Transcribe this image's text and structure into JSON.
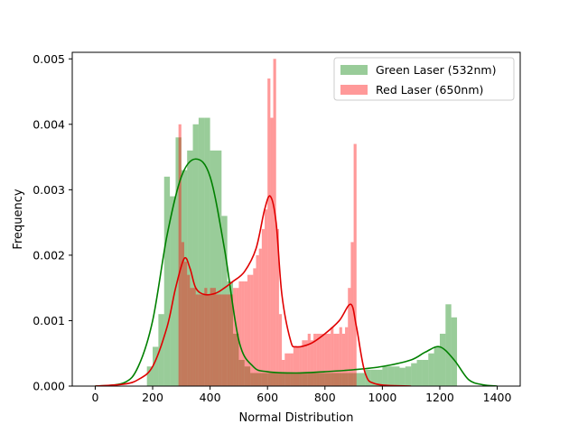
{
  "chart_data": {
    "type": "histogram",
    "xlabel": "Normal Distribution",
    "ylabel": "Frequency",
    "xlim": [
      -80,
      1480
    ],
    "ylim": [
      0,
      0.0051
    ],
    "x_ticks": [
      0,
      200,
      400,
      600,
      800,
      1000,
      1200,
      1400
    ],
    "y_ticks": [
      0.0,
      0.001,
      0.002,
      0.003,
      0.004,
      0.005
    ],
    "y_tick_labels": [
      "0.000",
      "0.001",
      "0.002",
      "0.003",
      "0.004",
      "0.005"
    ],
    "legend_position": "top-right",
    "series": [
      {
        "name": "Green Laser (532nm)",
        "color": "#008000",
        "bar_alpha": 0.4,
        "bin_width": 20,
        "bins": [
          [
            180,
            0.0003
          ],
          [
            200,
            0.0006
          ],
          [
            220,
            0.0011
          ],
          [
            240,
            0.0032
          ],
          [
            260,
            0.0029
          ],
          [
            280,
            0.0038
          ],
          [
            300,
            0.0033
          ],
          [
            320,
            0.0036
          ],
          [
            340,
            0.004
          ],
          [
            360,
            0.0041
          ],
          [
            380,
            0.0041
          ],
          [
            400,
            0.0036
          ],
          [
            420,
            0.0036
          ],
          [
            440,
            0.0026
          ],
          [
            460,
            0.0016
          ],
          [
            480,
            0.0008
          ],
          [
            500,
            0.0004
          ],
          [
            520,
            0.0003
          ],
          [
            540,
            0.0002
          ],
          [
            560,
            0.0002
          ],
          [
            580,
            0.0002
          ],
          [
            600,
            0.0002
          ],
          [
            620,
            0.0002
          ],
          [
            640,
            0.0002
          ],
          [
            660,
            0.0002
          ],
          [
            680,
            0.0002
          ],
          [
            700,
            0.0002
          ],
          [
            720,
            0.0002
          ],
          [
            740,
            0.0002
          ],
          [
            760,
            0.0002
          ],
          [
            780,
            0.0002
          ],
          [
            800,
            0.0002
          ],
          [
            820,
            0.0002
          ],
          [
            840,
            0.0002
          ],
          [
            860,
            0.0002
          ],
          [
            880,
            0.0002
          ],
          [
            900,
            0.0002
          ],
          [
            920,
            0.0002
          ],
          [
            940,
            0.00025
          ],
          [
            960,
            0.00025
          ],
          [
            980,
            0.00025
          ],
          [
            1000,
            0.0003
          ],
          [
            1020,
            0.0003
          ],
          [
            1040,
            0.0003
          ],
          [
            1060,
            0.00028
          ],
          [
            1080,
            0.0003
          ],
          [
            1100,
            0.00035
          ],
          [
            1120,
            0.0004
          ],
          [
            1140,
            0.0004
          ],
          [
            1160,
            0.0005
          ],
          [
            1180,
            0.0006
          ],
          [
            1200,
            0.0008
          ],
          [
            1220,
            0.00125
          ],
          [
            1240,
            0.00105
          ]
        ],
        "kde": [
          [
            0,
            0.0
          ],
          [
            100,
            5e-05
          ],
          [
            150,
            0.0003
          ],
          [
            200,
            0.001
          ],
          [
            250,
            0.0023
          ],
          [
            300,
            0.0032
          ],
          [
            350,
            0.00347
          ],
          [
            400,
            0.0032
          ],
          [
            450,
            0.0021
          ],
          [
            500,
            0.0007
          ],
          [
            550,
            0.0003
          ],
          [
            600,
            0.00022
          ],
          [
            700,
            0.0002
          ],
          [
            800,
            0.00022
          ],
          [
            900,
            0.00025
          ],
          [
            1000,
            0.0003
          ],
          [
            1100,
            0.0004
          ],
          [
            1150,
            0.00052
          ],
          [
            1200,
            0.0006
          ],
          [
            1250,
            0.0004
          ],
          [
            1300,
            0.0001
          ],
          [
            1350,
            2e-05
          ],
          [
            1400,
            0.0
          ]
        ]
      },
      {
        "name": "Red Laser (650nm)",
        "color": "#ff0000",
        "bar_alpha": 0.4,
        "bin_width": 10,
        "bins": [
          [
            290,
            0.004
          ],
          [
            300,
            0.0022
          ],
          [
            310,
            0.0019
          ],
          [
            320,
            0.0017
          ],
          [
            330,
            0.0015
          ],
          [
            340,
            0.0015
          ],
          [
            350,
            0.0014
          ],
          [
            360,
            0.0014
          ],
          [
            370,
            0.0014
          ],
          [
            380,
            0.0015
          ],
          [
            390,
            0.0014
          ],
          [
            400,
            0.0015
          ],
          [
            410,
            0.0015
          ],
          [
            420,
            0.0014
          ],
          [
            430,
            0.0014
          ],
          [
            440,
            0.0014
          ],
          [
            450,
            0.0014
          ],
          [
            460,
            0.0014
          ],
          [
            470,
            0.0014
          ],
          [
            480,
            0.0015
          ],
          [
            490,
            0.0015
          ],
          [
            500,
            0.0016
          ],
          [
            510,
            0.0016
          ],
          [
            520,
            0.0016
          ],
          [
            530,
            0.0017
          ],
          [
            540,
            0.0017
          ],
          [
            550,
            0.0018
          ],
          [
            560,
            0.002
          ],
          [
            570,
            0.0021
          ],
          [
            580,
            0.0024
          ],
          [
            590,
            0.0027
          ],
          [
            600,
            0.0047
          ],
          [
            610,
            0.0041
          ],
          [
            620,
            0.005
          ],
          [
            630,
            0.0024
          ],
          [
            640,
            0.0011
          ],
          [
            650,
            0.0004
          ],
          [
            660,
            0.0005
          ],
          [
            670,
            0.0005
          ],
          [
            680,
            0.0005
          ],
          [
            690,
            0.0006
          ],
          [
            700,
            0.0006
          ],
          [
            710,
            0.0006
          ],
          [
            720,
            0.0007
          ],
          [
            730,
            0.0007
          ],
          [
            740,
            0.0008
          ],
          [
            750,
            0.0007
          ],
          [
            760,
            0.0008
          ],
          [
            770,
            0.0008
          ],
          [
            780,
            0.0008
          ],
          [
            790,
            0.0008
          ],
          [
            800,
            0.0008
          ],
          [
            810,
            0.0008
          ],
          [
            820,
            0.0009
          ],
          [
            830,
            0.0008
          ],
          [
            840,
            0.0008
          ],
          [
            850,
            0.0009
          ],
          [
            860,
            0.0008
          ],
          [
            870,
            0.0009
          ],
          [
            880,
            0.0015
          ],
          [
            890,
            0.0022
          ],
          [
            900,
            0.0037
          ]
        ],
        "kde": [
          [
            0,
            0.0
          ],
          [
            100,
            3e-05
          ],
          [
            150,
            0.0001
          ],
          [
            200,
            0.0003
          ],
          [
            250,
            0.0009
          ],
          [
            280,
            0.0015
          ],
          [
            310,
            0.00195
          ],
          [
            330,
            0.0018
          ],
          [
            350,
            0.0015
          ],
          [
            380,
            0.0014
          ],
          [
            420,
            0.00142
          ],
          [
            450,
            0.0015
          ],
          [
            480,
            0.0016
          ],
          [
            520,
            0.00175
          ],
          [
            560,
            0.0021
          ],
          [
            590,
            0.0027
          ],
          [
            610,
            0.0029
          ],
          [
            630,
            0.0025
          ],
          [
            650,
            0.0014
          ],
          [
            680,
            0.0007
          ],
          [
            700,
            0.0006
          ],
          [
            750,
            0.00065
          ],
          [
            800,
            0.0008
          ],
          [
            850,
            0.001
          ],
          [
            890,
            0.00125
          ],
          [
            910,
            0.0009
          ],
          [
            940,
            0.0002
          ],
          [
            980,
            3e-05
          ],
          [
            1100,
            0.0
          ]
        ]
      }
    ]
  }
}
